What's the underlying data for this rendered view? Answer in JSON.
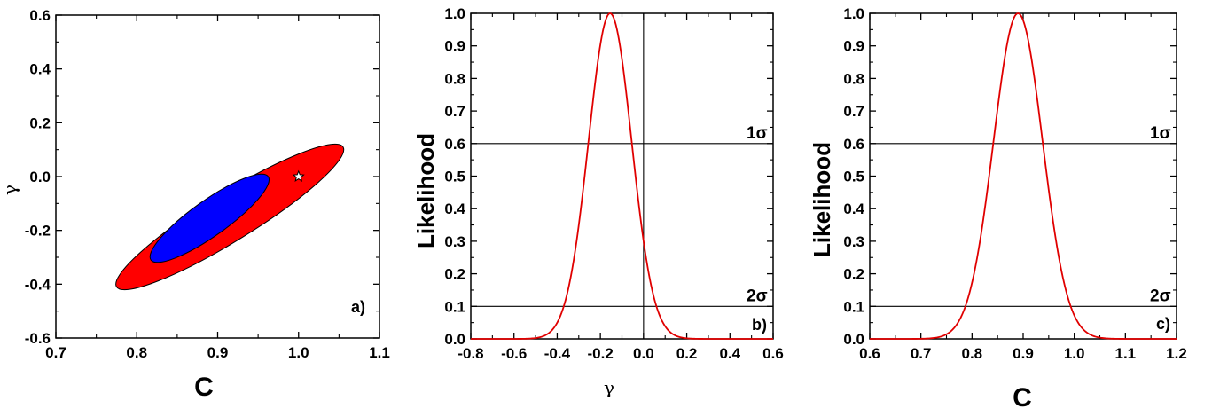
{
  "chart_data": [
    {
      "type": "contour",
      "panel_label": "a)",
      "xlabel": "C",
      "ylabel": "γ",
      "xlim": [
        0.7,
        1.1
      ],
      "ylim": [
        -0.6,
        0.6
      ],
      "xticks": [
        "0.7",
        "0.8",
        "0.9",
        "1.0",
        "1.1"
      ],
      "yticks": [
        "-0.6",
        "-0.4",
        "-0.2",
        "0.0",
        "0.2",
        "0.4",
        "0.6"
      ],
      "regions": [
        {
          "level": "2σ",
          "color": "#ff0000",
          "center": [
            0.915,
            -0.15
          ],
          "extent_x": [
            0.775,
            1.055
          ],
          "extent_y": [
            -0.42,
            0.1
          ]
        },
        {
          "level": "1σ",
          "color": "#0000ff",
          "center": [
            0.89,
            -0.155
          ],
          "extent_x": [
            0.82,
            0.965
          ],
          "extent_y": [
            -0.31,
            -0.0
          ]
        }
      ],
      "marker": {
        "symbol": "star",
        "x": 1.0,
        "y": 0.0
      }
    },
    {
      "type": "line",
      "panel_label": "b)",
      "xlabel": "γ",
      "ylabel": "Likelihood",
      "xlim": [
        -0.8,
        0.6
      ],
      "ylim": [
        0.0,
        1.0
      ],
      "xticks": [
        "-0.8",
        "-0.6",
        "-0.4",
        "-0.2",
        "0.0",
        "0.2",
        "0.4",
        "0.6"
      ],
      "yticks": [
        "0.0",
        "0.1",
        "0.2",
        "0.3",
        "0.4",
        "0.5",
        "0.6",
        "0.7",
        "0.8",
        "0.9",
        "1.0"
      ],
      "curve": {
        "shape": "gaussian",
        "peak_x": -0.155,
        "sigma": 0.1,
        "color": "#e00000"
      },
      "hlines": [
        {
          "y": 0.6,
          "label": "1σ"
        },
        {
          "y": 0.1,
          "label": "2σ"
        }
      ],
      "vlines": [
        0.0
      ]
    },
    {
      "type": "line",
      "panel_label": "c)",
      "xlabel": "C",
      "ylabel": "Likelihood",
      "xlim": [
        0.6,
        1.2
      ],
      "ylim": [
        0.0,
        1.0
      ],
      "xticks": [
        "0.6",
        "0.7",
        "0.8",
        "0.9",
        "1.0",
        "1.1",
        "1.2"
      ],
      "yticks": [
        "0.0",
        "0.1",
        "0.2",
        "0.3",
        "0.4",
        "0.5",
        "0.6",
        "0.7",
        "0.8",
        "0.9",
        "1.0"
      ],
      "curve": {
        "shape": "gaussian",
        "peak_x": 0.89,
        "sigma": 0.048,
        "color": "#e00000"
      },
      "hlines": [
        {
          "y": 0.6,
          "label": "1σ"
        },
        {
          "y": 0.1,
          "label": "2σ"
        }
      ],
      "vlines": []
    }
  ]
}
